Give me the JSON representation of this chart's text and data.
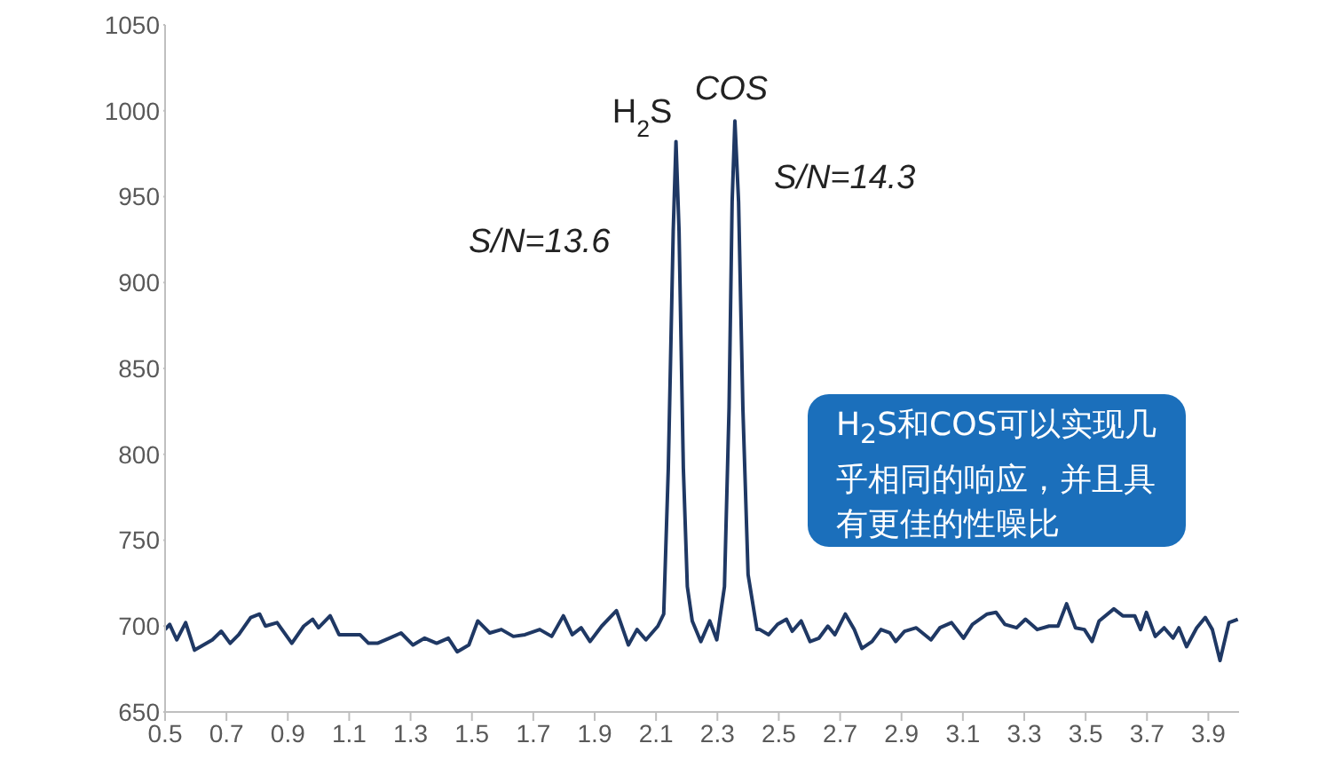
{
  "chart_data": {
    "type": "line",
    "x": [
      0.5,
      0.515,
      0.538,
      0.567,
      0.596,
      0.625,
      0.654,
      0.683,
      0.712,
      0.74,
      0.779,
      0.808,
      0.827,
      0.865,
      0.913,
      0.952,
      0.981,
      1.0,
      1.038,
      1.067,
      1.106,
      1.135,
      1.163,
      1.192,
      1.231,
      1.269,
      1.308,
      1.346,
      1.385,
      1.423,
      1.452,
      1.49,
      1.519,
      1.558,
      1.596,
      1.635,
      1.673,
      1.721,
      1.76,
      1.798,
      1.827,
      1.856,
      1.885,
      1.923,
      1.971,
      2.01,
      2.038,
      2.067,
      2.106,
      2.125,
      2.14,
      2.156,
      2.165,
      2.175,
      2.189,
      2.202,
      2.218,
      2.246,
      2.275,
      2.298,
      2.323,
      2.338,
      2.348,
      2.357,
      2.369,
      2.383,
      2.4,
      2.429,
      2.438,
      2.467,
      2.496,
      2.525,
      2.544,
      2.573,
      2.602,
      2.631,
      2.66,
      2.683,
      2.717,
      2.746,
      2.771,
      2.804,
      2.833,
      2.862,
      2.881,
      2.91,
      2.948,
      2.996,
      3.025,
      3.063,
      3.102,
      3.131,
      3.179,
      3.208,
      3.237,
      3.275,
      3.304,
      3.342,
      3.381,
      3.41,
      3.438,
      3.467,
      3.496,
      3.521,
      3.544,
      3.592,
      3.621,
      3.66,
      3.679,
      3.698,
      3.727,
      3.756,
      3.785,
      3.804,
      3.829,
      3.862,
      3.89,
      3.913,
      3.938,
      3.967,
      3.996
    ],
    "series": [
      {
        "color": "#1f3864",
        "values": [
          698,
          701,
          692,
          702,
          686,
          689,
          692,
          697,
          690,
          695,
          705,
          707,
          700,
          702,
          690,
          700,
          704,
          699,
          706,
          695,
          695,
          695,
          690,
          690,
          693,
          696,
          689,
          693,
          690,
          693,
          685,
          689,
          703,
          696,
          698,
          694,
          695,
          698,
          694,
          706,
          695,
          699,
          691,
          700,
          709,
          689,
          698,
          692,
          700,
          707,
          792,
          930,
          982,
          930,
          792,
          723,
          703,
          691,
          703,
          692,
          723,
          827,
          947,
          994,
          947,
          827,
          730,
          698,
          698,
          695,
          701,
          704,
          697,
          703,
          691,
          693,
          700,
          695,
          707,
          698,
          687,
          691,
          698,
          696,
          691,
          697,
          699,
          692,
          699,
          702,
          693,
          701,
          707,
          708,
          701,
          699,
          704,
          698,
          700,
          700,
          713,
          699,
          698,
          691,
          703,
          710,
          706,
          706,
          698,
          708,
          694,
          699,
          693,
          699,
          688,
          699,
          705,
          698,
          680,
          702,
          704
        ]
      }
    ],
    "xlim": [
      0.5,
      4.0
    ],
    "xticks": [
      0.5,
      0.7,
      0.9,
      1.1,
      1.3,
      1.5,
      1.7,
      1.9,
      2.1,
      2.3,
      2.5,
      2.7,
      2.9,
      3.1,
      3.3,
      3.5,
      3.7,
      3.9
    ],
    "ylim": [
      650,
      1050
    ],
    "yticks": [
      650,
      700,
      750,
      800,
      850,
      900,
      950,
      1000,
      1050
    ],
    "grid": false,
    "legend": false,
    "marker": "none",
    "line_style": "solid",
    "annotations": [
      {
        "text": "H$_{2}$S",
        "x": 2.165,
        "y": 982
      },
      {
        "text": "COS",
        "x": 2.357,
        "y": 994
      },
      "S/N=13.6",
      "S/N=14.3",
      "H$_{2}$S和COS可以实现几乎相同的响应，并且具有更佳的性噪比"
    ]
  }
}
